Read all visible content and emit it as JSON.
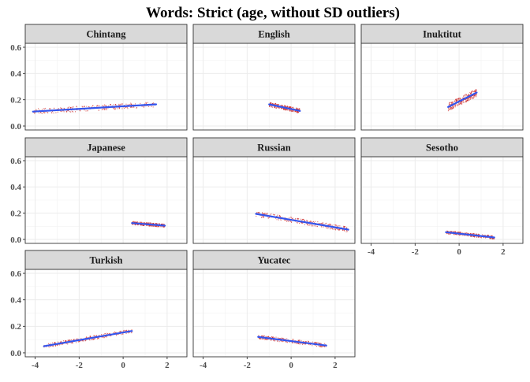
{
  "chart_data": {
    "type": "scatter",
    "title": "Words: Strict (age, without SD outliers)",
    "xlabel": "",
    "ylabel": "",
    "xlim": [
      -4.45,
      2.9
    ],
    "ylim": [
      -0.03,
      0.63
    ],
    "xticks": [
      -4,
      -2,
      0,
      2
    ],
    "yticks": [
      0.0,
      0.2,
      0.4,
      0.6
    ],
    "xtick_labels": [
      "-4",
      "-2",
      "0",
      "2"
    ],
    "ytick_labels": [
      "0.0",
      "0.2",
      "0.4",
      "0.6"
    ],
    "grid": true,
    "point_color": "#cc2a2a",
    "line_color": "#3355ee",
    "strip_fill": "#d9d9d9",
    "panels": [
      {
        "name": "Chintang",
        "x_range": [
          -4.1,
          1.5
        ],
        "fit": [
          [
            -4.1,
            0.11
          ],
          [
            1.5,
            0.165
          ]
        ],
        "spread": 0.04
      },
      {
        "name": "English",
        "x_range": [
          -1.0,
          0.4
        ],
        "fit": [
          [
            -1.0,
            0.165
          ],
          [
            0.4,
            0.115
          ]
        ],
        "spread": 0.035
      },
      {
        "name": "Inuktitut",
        "x_range": [
          -0.5,
          0.8
        ],
        "fit": [
          [
            -0.5,
            0.145
          ],
          [
            0.8,
            0.255
          ]
        ],
        "spread": 0.06
      },
      {
        "name": "Japanese",
        "x_range": [
          0.4,
          1.9
        ],
        "fit": [
          [
            0.4,
            0.125
          ],
          [
            1.9,
            0.105
          ]
        ],
        "spread": 0.025
      },
      {
        "name": "Russian",
        "x_range": [
          -1.6,
          2.6
        ],
        "fit": [
          [
            -1.6,
            0.195
          ],
          [
            2.6,
            0.075
          ]
        ],
        "spread": 0.04
      },
      {
        "name": "Sesotho",
        "x_range": [
          -0.6,
          1.6
        ],
        "fit": [
          [
            -0.6,
            0.055
          ],
          [
            1.6,
            0.015
          ]
        ],
        "spread": 0.025
      },
      {
        "name": "Turkish",
        "x_range": [
          -3.6,
          0.4
        ],
        "fit": [
          [
            -3.6,
            0.05
          ],
          [
            0.4,
            0.165
          ]
        ],
        "spread": 0.03
      },
      {
        "name": "Yucatec",
        "x_range": [
          -1.5,
          1.6
        ],
        "fit": [
          [
            -1.5,
            0.12
          ],
          [
            1.6,
            0.055
          ]
        ],
        "spread": 0.03
      }
    ]
  }
}
